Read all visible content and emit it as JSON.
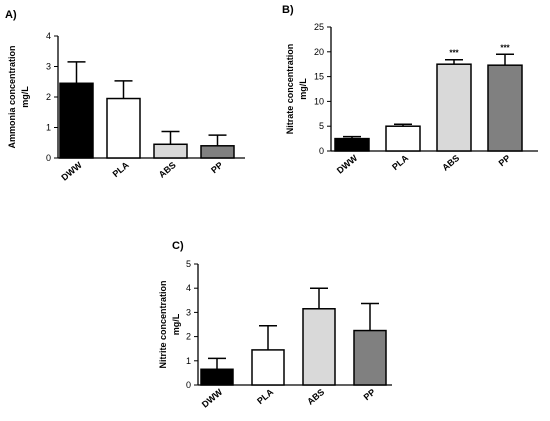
{
  "chart_data": [
    {
      "panel": "A)",
      "type": "bar",
      "ylabel": [
        "Ammonia concentration",
        "mg/L"
      ],
      "categories": [
        "DWW",
        "PLA",
        "ABS",
        "PP"
      ],
      "values": [
        2.45,
        1.95,
        0.45,
        0.4
      ],
      "errors": [
        0.7,
        0.58,
        0.42,
        0.35
      ],
      "significance": [
        "",
        "",
        "",
        ""
      ],
      "bar_colors": [
        "#000000",
        "#ffffff",
        "#d9d9d9",
        "#808080"
      ],
      "ylim": [
        0,
        4
      ],
      "yticks": [
        0,
        1,
        2,
        3,
        4
      ]
    },
    {
      "panel": "B)",
      "type": "bar",
      "ylabel": [
        "Nitrate concentration",
        "mg/L"
      ],
      "categories": [
        "DWW",
        "PLA",
        "ABS",
        "PP"
      ],
      "values": [
        2.5,
        5.0,
        17.5,
        17.3
      ],
      "errors": [
        0.4,
        0.4,
        0.9,
        2.2
      ],
      "significance": [
        "",
        "",
        "***",
        "***"
      ],
      "bar_colors": [
        "#000000",
        "#ffffff",
        "#d9d9d9",
        "#808080"
      ],
      "ylim": [
        0,
        25
      ],
      "yticks": [
        0,
        5,
        10,
        15,
        20,
        25
      ]
    },
    {
      "panel": "C)",
      "type": "bar",
      "ylabel": [
        "Nitrite concentration",
        "mg/L"
      ],
      "categories": [
        "DWW",
        "PLA",
        "ABS",
        "PP"
      ],
      "values": [
        0.65,
        1.45,
        3.15,
        2.25
      ],
      "errors": [
        0.45,
        1.0,
        0.85,
        1.12
      ],
      "significance": [
        "",
        "",
        "",
        ""
      ],
      "bar_colors": [
        "#000000",
        "#ffffff",
        "#d9d9d9",
        "#808080"
      ],
      "ylim": [
        0,
        5
      ],
      "yticks": [
        0,
        1,
        2,
        3,
        4,
        5
      ]
    }
  ]
}
